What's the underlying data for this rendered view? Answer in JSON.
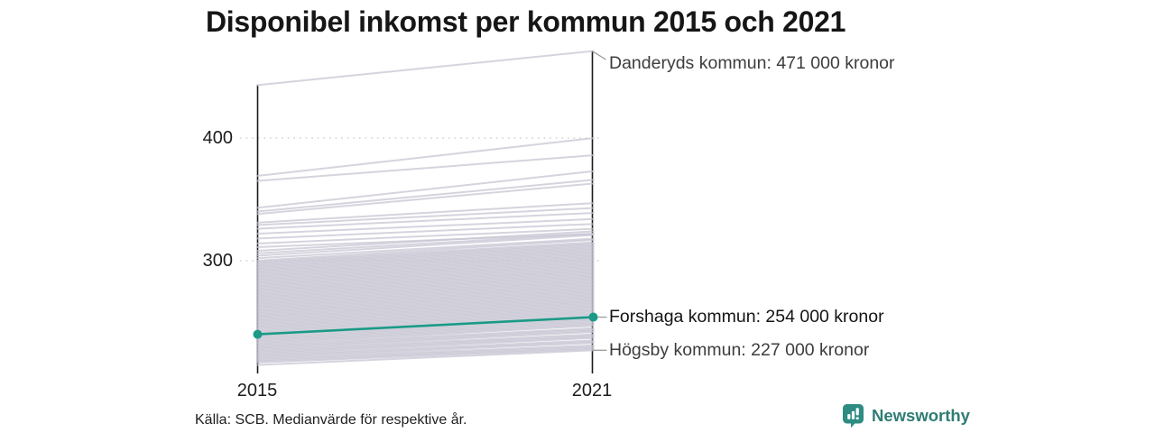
{
  "title": "Disponibel inkomst per kommun 2015 och 2021",
  "footer": {
    "source": "Källa: SCB. Medianvärde för respektive år."
  },
  "branding": {
    "name": "Newsworthy",
    "icon": "newsworthy-pin-barchart-icon",
    "color": "#2e7d74"
  },
  "colors": {
    "highlight": "#1b9a87",
    "background_line": "#c7c5d3",
    "axis": "#1a1a1a",
    "gridline": "#d2d2d2",
    "connector": "#9a9a9a"
  },
  "chart_data": {
    "type": "line",
    "subtype": "slopegraph",
    "title": "Disponibel inkomst per kommun 2015 och 2021",
    "x": [
      2015,
      2021
    ],
    "x_tick_labels": [
      "2015",
      "2021"
    ],
    "y_tick_labels": [
      "400",
      "300"
    ],
    "y_tick_values": [
      400,
      300
    ],
    "unit": "tusen kronor (medianvärde)",
    "grid": "dotted horizontal at y ticks",
    "highlighted_series": {
      "name": "Forshaga kommun",
      "values": [
        240,
        254
      ],
      "label": "Forshaga kommun: 254 000 kronor",
      "markers": true
    },
    "annotated_series": [
      {
        "name": "Danderyds kommun",
        "values": [
          443,
          471
        ],
        "label": "Danderyds kommun: 471 000 kronor"
      },
      {
        "name": "Högsby kommun",
        "values": [
          215,
          227
        ],
        "label": "Högsby kommun: 227 000 kronor"
      }
    ],
    "background_lines": [
      [
        369,
        400
      ],
      [
        365,
        386
      ],
      [
        343,
        373
      ],
      [
        340,
        366
      ],
      [
        338,
        363
      ],
      [
        331,
        347
      ],
      [
        329,
        343
      ],
      [
        326,
        339
      ],
      [
        322,
        334
      ],
      [
        318,
        330
      ],
      [
        314,
        326
      ],
      [
        311,
        322
      ],
      [
        308,
        324
      ],
      [
        306,
        322
      ],
      [
        304,
        321
      ],
      [
        302,
        318
      ],
      [
        300,
        317
      ],
      [
        299,
        315
      ],
      [
        298,
        314
      ],
      [
        297,
        313
      ],
      [
        296,
        312
      ],
      [
        295,
        311
      ],
      [
        294,
        310
      ],
      [
        293,
        309
      ],
      [
        292,
        308
      ],
      [
        291,
        307
      ],
      [
        290,
        306
      ],
      [
        289,
        305
      ],
      [
        288,
        304
      ],
      [
        287,
        303
      ],
      [
        286,
        302
      ],
      [
        285,
        301
      ],
      [
        284,
        300
      ],
      [
        283,
        299
      ],
      [
        282,
        298
      ],
      [
        281,
        297
      ],
      [
        280,
        296
      ],
      [
        279,
        295
      ],
      [
        278,
        294
      ],
      [
        277,
        293
      ],
      [
        276,
        292
      ],
      [
        275,
        291
      ],
      [
        274,
        290
      ],
      [
        273,
        289
      ],
      [
        272,
        288
      ],
      [
        271,
        287
      ],
      [
        270,
        286
      ],
      [
        269,
        285
      ],
      [
        268,
        284
      ],
      [
        267,
        283
      ],
      [
        266,
        282
      ],
      [
        265,
        281
      ],
      [
        264,
        280
      ],
      [
        263,
        279
      ],
      [
        262,
        278
      ],
      [
        261,
        277
      ],
      [
        260,
        276
      ],
      [
        259,
        275
      ],
      [
        258,
        274
      ],
      [
        257,
        273
      ],
      [
        256,
        272
      ],
      [
        255,
        271
      ],
      [
        254,
        270
      ],
      [
        253,
        269
      ],
      [
        252,
        268
      ],
      [
        251,
        267
      ],
      [
        250,
        266
      ],
      [
        249,
        265
      ],
      [
        248,
        264
      ],
      [
        247,
        263
      ],
      [
        246,
        262
      ],
      [
        245,
        261
      ],
      [
        244,
        260
      ],
      [
        243,
        259
      ],
      [
        242,
        258
      ],
      [
        241,
        257
      ],
      [
        240,
        256
      ],
      [
        239,
        255
      ],
      [
        238,
        253
      ],
      [
        237,
        252
      ],
      [
        236,
        251
      ],
      [
        235,
        250
      ],
      [
        234,
        249
      ],
      [
        233,
        248
      ],
      [
        232,
        247
      ],
      [
        231,
        245
      ],
      [
        230,
        244
      ],
      [
        229,
        243
      ],
      [
        228,
        242
      ],
      [
        227,
        240
      ],
      [
        226,
        239
      ],
      [
        225,
        238
      ],
      [
        224,
        237
      ],
      [
        223,
        235
      ],
      [
        222,
        234
      ],
      [
        221,
        233
      ],
      [
        220,
        231
      ],
      [
        219,
        230
      ],
      [
        218,
        229
      ],
      [
        217,
        228
      ]
    ]
  }
}
